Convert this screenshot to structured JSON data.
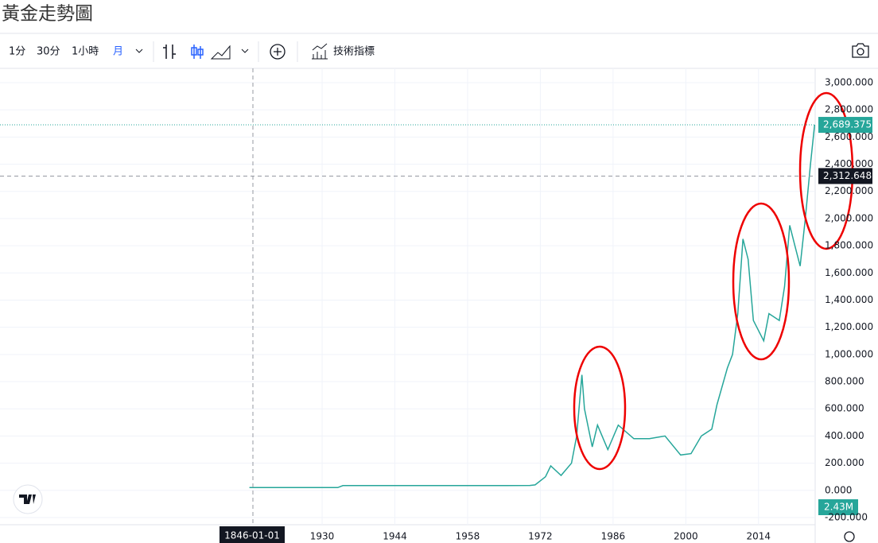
{
  "header": {
    "title": "黃金走勢圖"
  },
  "toolbar": {
    "intervals": [
      "1分",
      "30分",
      "1小時",
      "月"
    ],
    "indicators": "技術指標"
  },
  "chart_data": {
    "type": "line",
    "color": "#26a69a",
    "x": [
      1916,
      1933,
      1934,
      1960,
      1970,
      1971,
      1973,
      1974,
      1976,
      1978,
      1979,
      1980,
      1980.5,
      1982,
      1983,
      1985,
      1987,
      1990,
      1993,
      1996,
      1999,
      2001,
      2003,
      2005,
      2006,
      2008,
      2009,
      2010,
      2011,
      2012,
      2013,
      2015,
      2016,
      2018,
      2019,
      2020,
      2021,
      2022,
      2023,
      2024,
      2024.8
    ],
    "values": [
      20,
      20,
      35,
      35,
      36,
      40,
      100,
      180,
      110,
      200,
      400,
      850,
      600,
      320,
      480,
      300,
      480,
      380,
      380,
      400,
      260,
      270,
      400,
      450,
      630,
      900,
      1000,
      1300,
      1850,
      1700,
      1250,
      1100,
      1300,
      1250,
      1500,
      1950,
      1800,
      1650,
      2000,
      2400,
      2689.375
    ],
    "xlim": [
      1868,
      2024.9
    ],
    "xticks": [
      1930,
      1944,
      1958,
      1972,
      1986,
      2000,
      2014
    ],
    "ylim": [
      -253,
      3105
    ],
    "yticks": [
      {
        "value": -200,
        "label": "-200.000"
      },
      {
        "value": 0,
        "label": "0.000"
      },
      {
        "value": 200,
        "label": "200.000"
      },
      {
        "value": 400,
        "label": "400.000"
      },
      {
        "value": 600,
        "label": "600.000"
      },
      {
        "value": 800,
        "label": "800.000"
      },
      {
        "value": 1000,
        "label": "1,000.000"
      },
      {
        "value": 1200,
        "label": "1,200.000"
      },
      {
        "value": 1400,
        "label": "1,400.000"
      },
      {
        "value": 1600,
        "label": "1,600.000"
      },
      {
        "value": 1800,
        "label": "1,800.000"
      },
      {
        "value": 2000,
        "label": "2,000.000"
      },
      {
        "value": 2200,
        "label": "2,200.000"
      },
      {
        "value": 2400,
        "label": "2,400.000"
      },
      {
        "value": 2600,
        "label": "2,600.000"
      },
      {
        "value": 2800,
        "label": "2,800.000"
      },
      {
        "value": 3000,
        "label": "3,000.000"
      }
    ],
    "grid": true,
    "last_price": {
      "value": 2689.375,
      "label": "2,689.375"
    },
    "crosshair_price": {
      "value": 2312.648,
      "label": "2,312.648"
    },
    "crosshair_x_label": "1846-01-01",
    "volume_label": "2.43M"
  }
}
